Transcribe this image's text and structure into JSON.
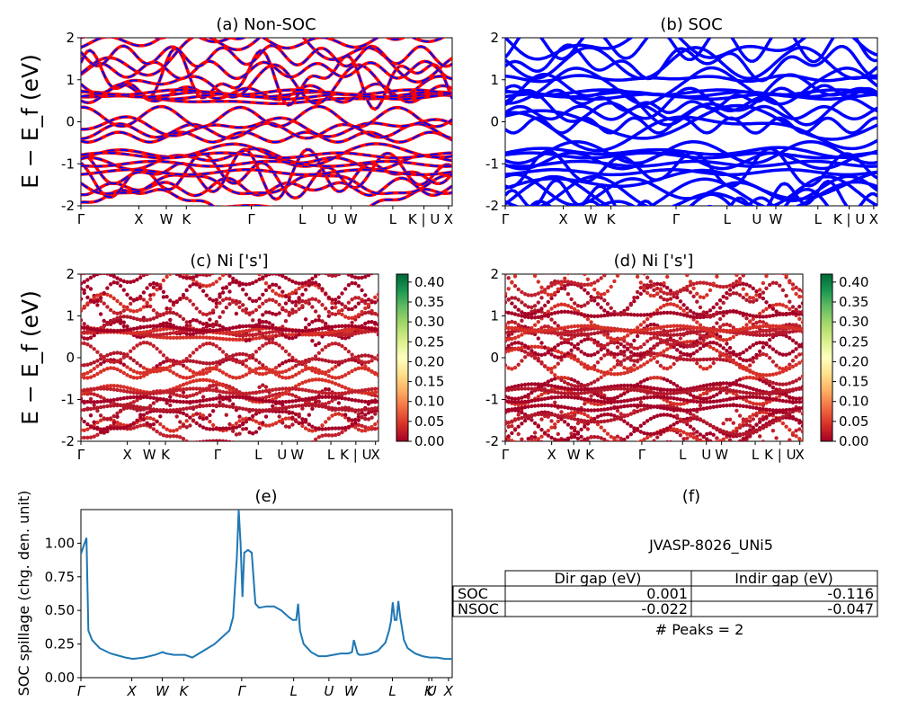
{
  "chart_data": [
    {
      "id": "a",
      "type": "line",
      "title": "(a) Non-SOC",
      "ylabel": "E − E_f (eV)",
      "ylim": [
        -2,
        2
      ],
      "yticks": [
        -2,
        -1,
        0,
        1,
        2
      ],
      "kpath": [
        "Γ",
        "X",
        "W",
        "K",
        "Γ",
        "L",
        "U",
        "W",
        "L",
        "K | U",
        "X"
      ],
      "kpath_positions": [
        0,
        0.156,
        0.23,
        0.284,
        0.459,
        0.596,
        0.676,
        0.727,
        0.84,
        0.924,
        0.99
      ],
      "series": [
        {
          "color": "#ff0000",
          "style": "solid"
        },
        {
          "color": "#0000ff",
          "style": "dashed"
        }
      ]
    },
    {
      "id": "b",
      "type": "line",
      "title": "(b) SOC",
      "ylim": [
        -2,
        2
      ],
      "yticks": [
        -2,
        -1,
        0,
        1,
        2
      ],
      "kpath": [
        "Γ",
        "X",
        "W",
        "K",
        "Γ",
        "L",
        "U",
        "W",
        "L",
        "K | U",
        "X"
      ],
      "kpath_positions": [
        0,
        0.156,
        0.23,
        0.284,
        0.459,
        0.596,
        0.676,
        0.727,
        0.84,
        0.924,
        0.99
      ],
      "series": [
        {
          "color": "#0000ff"
        }
      ]
    },
    {
      "id": "c",
      "type": "scatter",
      "title": "(c)  Ni ['s']",
      "ylabel": "E − E_f (eV)",
      "ylim": [
        -2,
        2
      ],
      "yticks": [
        -2,
        -1,
        0,
        1,
        2
      ],
      "kpath": [
        "Γ",
        "X",
        "W",
        "K",
        "Γ",
        "L",
        "U",
        "W",
        "L",
        "K | U",
        "X"
      ],
      "kpath_positions": [
        0,
        0.156,
        0.23,
        0.284,
        0.459,
        0.596,
        0.676,
        0.727,
        0.84,
        0.924,
        0.99
      ],
      "colorbar": {
        "min": 0.0,
        "max": 0.42,
        "ticks": [
          "0.00",
          "0.05",
          "0.10",
          "0.15",
          "0.20",
          "0.25",
          "0.30",
          "0.35",
          "0.40"
        ],
        "cmap": "RdYlGn"
      }
    },
    {
      "id": "d",
      "type": "scatter",
      "title": "(d) Ni ['s']",
      "ylim": [
        -2,
        2
      ],
      "yticks": [
        -2,
        -1,
        0,
        1,
        2
      ],
      "kpath": [
        "Γ",
        "X",
        "W",
        "K",
        "Γ",
        "L",
        "U",
        "W",
        "L",
        "K | U",
        "X"
      ],
      "kpath_positions": [
        0,
        0.156,
        0.23,
        0.284,
        0.459,
        0.596,
        0.676,
        0.727,
        0.84,
        0.924,
        0.99
      ],
      "colorbar": {
        "min": 0.0,
        "max": 0.42,
        "ticks": [
          "0.00",
          "0.05",
          "0.10",
          "0.15",
          "0.20",
          "0.25",
          "0.30",
          "0.35",
          "0.40"
        ],
        "cmap": "RdYlGn"
      }
    },
    {
      "id": "e",
      "type": "line",
      "title": "(e)",
      "ylabel": "SOC spillage (chg. den. unit)",
      "ylim": [
        0,
        1.25
      ],
      "yticks": [
        "0.00",
        "0.25",
        "0.50",
        "0.75",
        "1.00"
      ],
      "kpath": [
        "Γ",
        "X",
        "W",
        "K",
        "Γ",
        "L",
        "U",
        "W",
        "L",
        "K",
        "U",
        "X"
      ],
      "kpath_positions": [
        0,
        0.137,
        0.219,
        0.277,
        0.433,
        0.573,
        0.668,
        0.727,
        0.839,
        0.937,
        0.945,
        0.99
      ],
      "series": [
        {
          "color": "#1f77b4",
          "x": [
            0,
            0.01,
            0.015,
            0.02,
            0.03,
            0.05,
            0.08,
            0.12,
            0.14,
            0.17,
            0.2,
            0.22,
            0.23,
            0.25,
            0.28,
            0.3,
            0.33,
            0.36,
            0.38,
            0.4,
            0.41,
            0.42,
            0.425,
            0.43,
            0.435,
            0.44,
            0.445,
            0.45,
            0.46,
            0.47,
            0.48,
            0.5,
            0.52,
            0.54,
            0.56,
            0.57,
            0.58,
            0.585,
            0.59,
            0.6,
            0.62,
            0.64,
            0.66,
            0.68,
            0.7,
            0.72,
            0.73,
            0.735,
            0.745,
            0.75,
            0.76,
            0.78,
            0.8,
            0.82,
            0.83,
            0.835,
            0.84,
            0.845,
            0.85,
            0.855,
            0.86,
            0.87,
            0.88,
            0.9,
            0.92,
            0.94,
            0.96,
            0.98,
            1.0
          ],
          "y": [
            0.92,
            1.0,
            1.04,
            0.35,
            0.28,
            0.22,
            0.18,
            0.15,
            0.14,
            0.15,
            0.17,
            0.19,
            0.18,
            0.17,
            0.17,
            0.15,
            0.2,
            0.25,
            0.3,
            0.35,
            0.45,
            0.9,
            1.25,
            1.0,
            0.6,
            0.93,
            0.94,
            0.95,
            0.93,
            0.55,
            0.52,
            0.53,
            0.53,
            0.5,
            0.45,
            0.43,
            0.43,
            0.55,
            0.35,
            0.25,
            0.19,
            0.16,
            0.16,
            0.17,
            0.18,
            0.18,
            0.19,
            0.28,
            0.18,
            0.17,
            0.17,
            0.18,
            0.2,
            0.26,
            0.35,
            0.42,
            0.56,
            0.43,
            0.43,
            0.57,
            0.45,
            0.28,
            0.22,
            0.18,
            0.16,
            0.15,
            0.15,
            0.14,
            0.14
          ]
        }
      ]
    }
  ],
  "panel_f": {
    "title": "(f)",
    "material": "JVASP-8026_UNi5",
    "table": {
      "headers": [
        "Dir gap (eV)",
        "Indir gap (eV)"
      ],
      "rows": [
        {
          "label": "SOC",
          "dir": "0.001",
          "indir": "-0.116"
        },
        {
          "label": "NSOC",
          "dir": "-0.022",
          "indir": "-0.047"
        }
      ]
    },
    "peaks": "# Peaks = 2"
  }
}
